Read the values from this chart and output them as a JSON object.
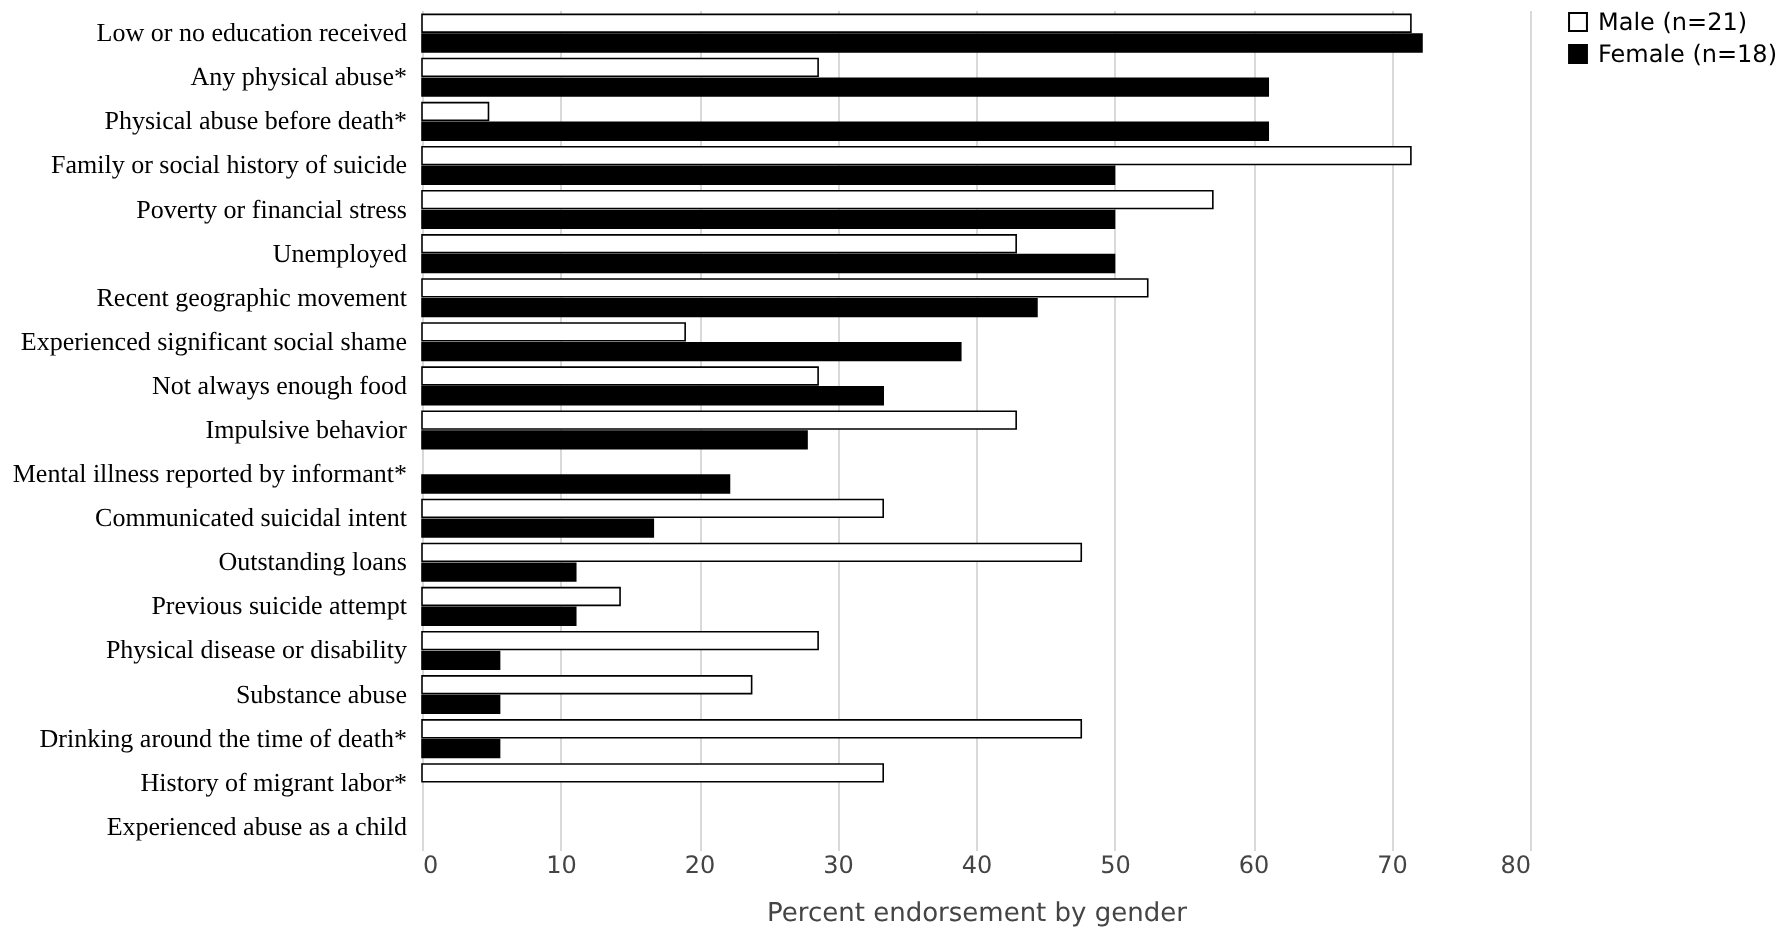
{
  "chart_data": {
    "type": "bar",
    "orientation": "horizontal",
    "xlabel": "Percent endorsement by gender",
    "categories": [
      "Low or no education received",
      "Any physical abuse*",
      "Physical abuse before death*",
      "Family or social history of suicide",
      "Poverty or financial stress",
      "Unemployed",
      "Recent geographic movement",
      "Experienced significant social shame",
      "Not always enough food",
      "Impulsive behavior",
      "Mental illness reported by informant*",
      "Communicated suicidal intent",
      "Outstanding loans",
      "Previous suicide attempt",
      "Physical disease  or disability",
      "Substance abuse",
      "Drinking around the time of death*",
      "History of migrant labor*",
      "Experienced abuse as a child"
    ],
    "series": [
      {
        "name": "Male (n=21)",
        "color": "#ffffff",
        "values": [
          71.4,
          28.6,
          4.8,
          71.4,
          57.1,
          42.9,
          52.4,
          19.0,
          28.6,
          42.9,
          0,
          33.3,
          47.6,
          14.3,
          28.6,
          23.8,
          47.6,
          33.3,
          0
        ]
      },
      {
        "name": "Female (n=18)",
        "color": "#000000",
        "values": [
          72.2,
          61.1,
          61.1,
          50.0,
          50.0,
          50.0,
          44.4,
          38.9,
          33.3,
          27.8,
          22.2,
          16.7,
          11.1,
          11.1,
          5.6,
          5.6,
          5.6,
          0,
          0
        ]
      }
    ],
    "xlim": [
      0,
      80
    ],
    "xticks": [
      0,
      10,
      20,
      30,
      40,
      50,
      60,
      70,
      80
    ],
    "grid": "x",
    "legend": "right"
  }
}
